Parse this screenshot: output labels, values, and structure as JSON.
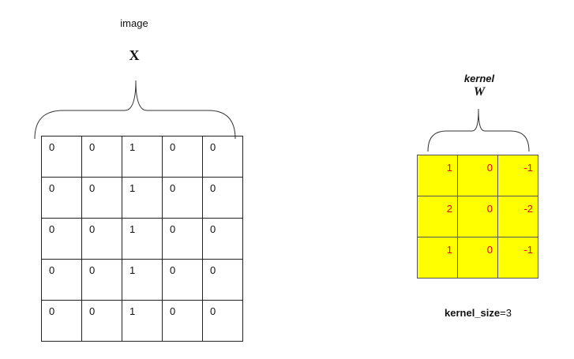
{
  "image": {
    "label": "image",
    "symbol": "X",
    "rows": [
      [
        "0",
        "0",
        "1",
        "0",
        "0"
      ],
      [
        "0",
        "0",
        "1",
        "0",
        "0"
      ],
      [
        "0",
        "0",
        "1",
        "0",
        "0"
      ],
      [
        "0",
        "0",
        "1",
        "0",
        "0"
      ],
      [
        "0",
        "0",
        "1",
        "0",
        "0"
      ]
    ]
  },
  "kernel": {
    "label": "kernel",
    "symbol": "W",
    "fill_color": "#ffff00",
    "value_color": "#e0001a",
    "rows": [
      [
        "1",
        "0",
        "-1"
      ],
      [
        "2",
        "0",
        "-2"
      ],
      [
        "1",
        "0",
        "-1"
      ]
    ],
    "size_key": "kernel_size",
    "size_value": "=3"
  }
}
